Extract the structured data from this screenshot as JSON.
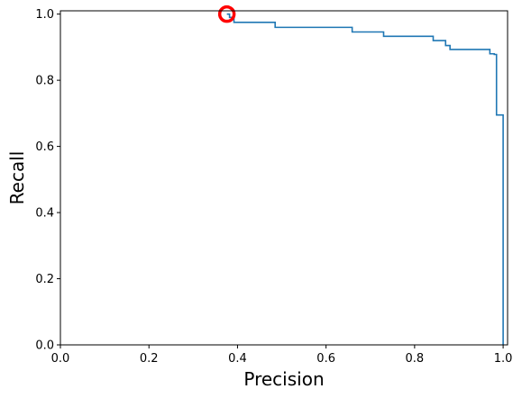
{
  "chart_data": {
    "type": "line",
    "title": "",
    "xlabel": "Precision",
    "ylabel": "Recall",
    "xlim": [
      0.0,
      1.01
    ],
    "ylim": [
      0.0,
      1.01
    ],
    "xticks": [
      "0.0",
      "0.2",
      "0.4",
      "0.6",
      "0.8",
      "1.0"
    ],
    "yticks": [
      "0.0",
      "0.2",
      "0.4",
      "0.6",
      "0.8",
      "1.0"
    ],
    "grid": false,
    "series": [
      {
        "color": "#1f77b4",
        "x": [
          0.376,
          0.376,
          0.382,
          0.382,
          0.392,
          0.392,
          0.485,
          0.485,
          0.659,
          0.659,
          0.73,
          0.73,
          0.842,
          0.842,
          0.87,
          0.87,
          0.88,
          0.88,
          0.97,
          0.97,
          0.98,
          0.98,
          0.985,
          0.985,
          1.0,
          1.0
        ],
        "y": [
          1.0,
          1.0,
          1.0,
          0.99,
          0.99,
          0.975,
          0.975,
          0.96,
          0.96,
          0.946,
          0.946,
          0.933,
          0.933,
          0.92,
          0.92,
          0.905,
          0.905,
          0.893,
          0.893,
          0.88,
          0.88,
          0.878,
          0.878,
          0.695,
          0.695,
          0.0
        ]
      }
    ],
    "marker": {
      "x": 0.376,
      "y": 1.0,
      "shape": "circle",
      "fill": "none",
      "color": "#ff0000"
    }
  }
}
